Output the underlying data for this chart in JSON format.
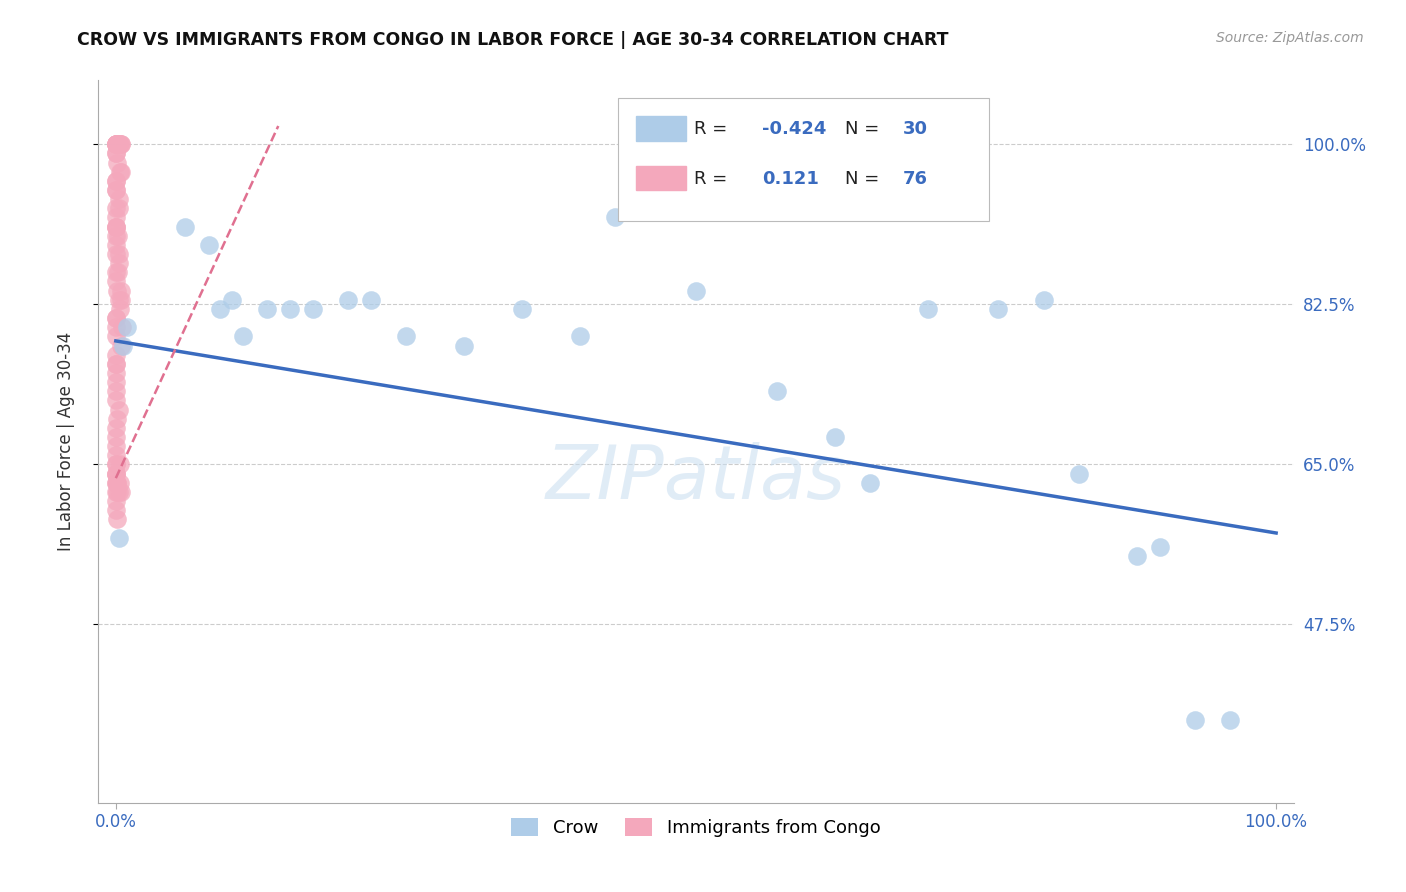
{
  "title": "CROW VS IMMIGRANTS FROM CONGO IN LABOR FORCE | AGE 30-34 CORRELATION CHART",
  "source": "Source: ZipAtlas.com",
  "ylabel": "In Labor Force | Age 30-34",
  "yticks": [
    0.475,
    0.65,
    0.825,
    1.0
  ],
  "ytick_labels": [
    "47.5%",
    "65.0%",
    "82.5%",
    "100.0%"
  ],
  "xtick_labels": [
    "0.0%",
    "100.0%"
  ],
  "legend_crow_r": "-0.424",
  "legend_crow_n": "30",
  "legend_congo_r": "0.121",
  "legend_congo_n": "76",
  "crow_color": "#aecce8",
  "congo_color": "#f4a8bc",
  "crow_line_color": "#3a6bbf",
  "congo_line_color": "#e07090",
  "watermark": "ZIPatlas",
  "background_color": "#ffffff",
  "grid_color": "#cccccc",
  "crow_x": [
    0.003,
    0.006,
    0.01,
    0.06,
    0.08,
    0.09,
    0.1,
    0.11,
    0.13,
    0.15,
    0.17,
    0.2,
    0.22,
    0.25,
    0.3,
    0.35,
    0.4,
    0.43,
    0.5,
    0.57,
    0.62,
    0.65,
    0.7,
    0.76,
    0.8,
    0.83,
    0.88,
    0.9,
    0.93,
    0.96
  ],
  "crow_y": [
    0.57,
    0.78,
    0.8,
    0.91,
    0.89,
    0.82,
    0.83,
    0.79,
    0.82,
    0.82,
    0.82,
    0.83,
    0.83,
    0.79,
    0.78,
    0.82,
    0.79,
    0.92,
    0.84,
    0.73,
    0.68,
    0.63,
    0.82,
    0.82,
    0.83,
    0.64,
    0.55,
    0.56,
    0.37,
    0.37
  ],
  "congo_x": [
    0.0,
    0.0,
    0.0,
    0.0,
    0.0,
    0.0,
    0.0,
    0.0,
    0.0,
    0.0,
    0.0,
    0.0,
    0.0,
    0.0,
    0.0,
    0.0,
    0.0,
    0.0,
    0.0,
    0.0,
    0.0,
    0.0,
    0.0,
    0.0,
    0.0,
    0.0,
    0.0,
    0.0,
    0.0,
    0.0,
    0.0,
    0.0,
    0.0,
    0.0,
    0.0,
    0.0,
    0.0,
    0.0,
    0.0,
    0.0,
    0.0,
    0.0,
    0.0,
    0.0,
    0.0,
    0.0,
    0.0,
    0.0,
    0.0,
    0.0,
    0.0,
    0.0,
    0.0,
    0.0,
    0.0,
    0.0,
    0.0,
    0.0,
    0.0,
    0.0,
    0.0,
    0.0,
    0.0,
    0.0,
    0.0,
    0.0,
    0.0,
    0.0,
    0.0,
    0.0,
    0.0,
    0.0,
    0.0,
    0.0,
    0.0,
    0.0
  ],
  "congo_y": [
    1.0,
    1.0,
    1.0,
    1.0,
    1.0,
    1.0,
    1.0,
    1.0,
    1.0,
    0.99,
    0.99,
    0.98,
    0.97,
    0.97,
    0.96,
    0.96,
    0.95,
    0.95,
    0.94,
    0.93,
    0.93,
    0.92,
    0.91,
    0.91,
    0.9,
    0.9,
    0.89,
    0.88,
    0.88,
    0.87,
    0.86,
    0.86,
    0.85,
    0.84,
    0.84,
    0.83,
    0.83,
    0.82,
    0.81,
    0.81,
    0.8,
    0.8,
    0.79,
    0.78,
    0.77,
    0.76,
    0.76,
    0.75,
    0.74,
    0.73,
    0.72,
    0.71,
    0.7,
    0.69,
    0.68,
    0.67,
    0.66,
    0.65,
    0.64,
    0.63,
    0.63,
    0.62,
    0.61,
    0.6,
    0.59,
    0.63,
    0.64,
    0.62,
    0.65,
    0.63,
    0.62,
    0.65,
    0.64,
    0.63,
    0.91,
    0.62
  ]
}
